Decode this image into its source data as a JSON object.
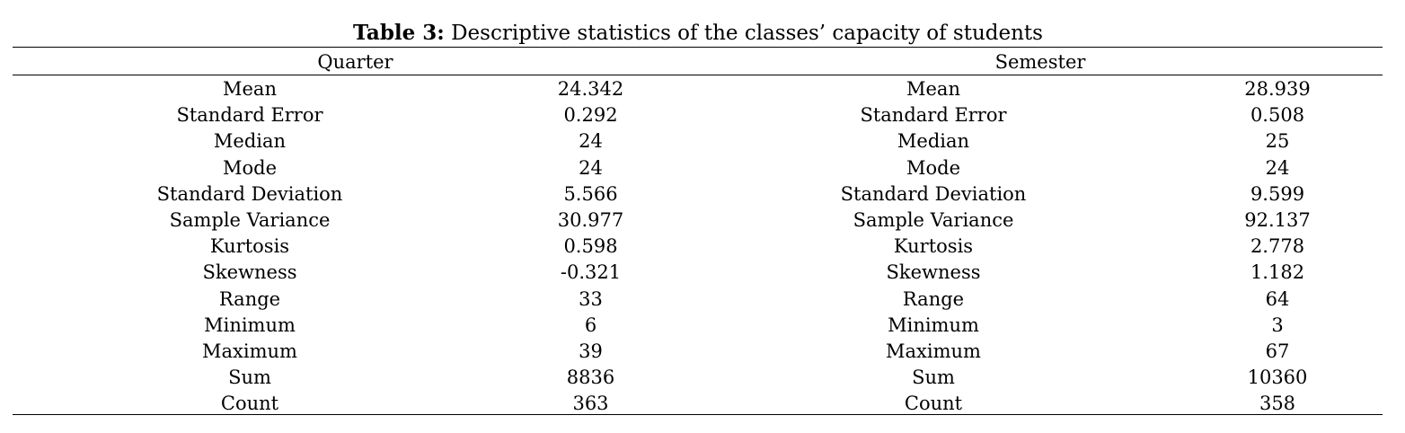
{
  "caption": {
    "label": "Table 3:",
    "text": " Descriptive statistics of the classes’ capacity of students"
  },
  "groups": {
    "quarter": "Quarter",
    "semester": "Semester"
  },
  "rows": [
    {
      "q_stat": "Mean",
      "q_val": "24.342",
      "s_stat": "Mean",
      "s_val": "28.939"
    },
    {
      "q_stat": "Standard Error",
      "q_val": "0.292",
      "s_stat": "Standard Error",
      "s_val": "0.508"
    },
    {
      "q_stat": "Median",
      "q_val": "24",
      "s_stat": "Median",
      "s_val": "25"
    },
    {
      "q_stat": "Mode",
      "q_val": "24",
      "s_stat": "Mode",
      "s_val": "24"
    },
    {
      "q_stat": "Standard Deviation",
      "q_val": "5.566",
      "s_stat": "Standard Deviation",
      "s_val": "9.599"
    },
    {
      "q_stat": "Sample Variance",
      "q_val": "30.977",
      "s_stat": "Sample Variance",
      "s_val": "92.137"
    },
    {
      "q_stat": "Kurtosis",
      "q_val": "0.598",
      "s_stat": "Kurtosis",
      "s_val": "2.778"
    },
    {
      "q_stat": "Skewness",
      "q_val": "-0.321",
      "s_stat": "Skewness",
      "s_val": "1.182"
    },
    {
      "q_stat": "Range",
      "q_val": "33",
      "s_stat": "Range",
      "s_val": "64"
    },
    {
      "q_stat": "Minimum",
      "q_val": "6",
      "s_stat": "Minimum",
      "s_val": "3"
    },
    {
      "q_stat": "Maximum",
      "q_val": "39",
      "s_stat": "Maximum",
      "s_val": "67"
    },
    {
      "q_stat": "Sum",
      "q_val": "8836",
      "s_stat": "Sum",
      "s_val": "10360"
    },
    {
      "q_stat": "Count",
      "q_val": "363",
      "s_stat": "Count",
      "s_val": "358"
    }
  ]
}
